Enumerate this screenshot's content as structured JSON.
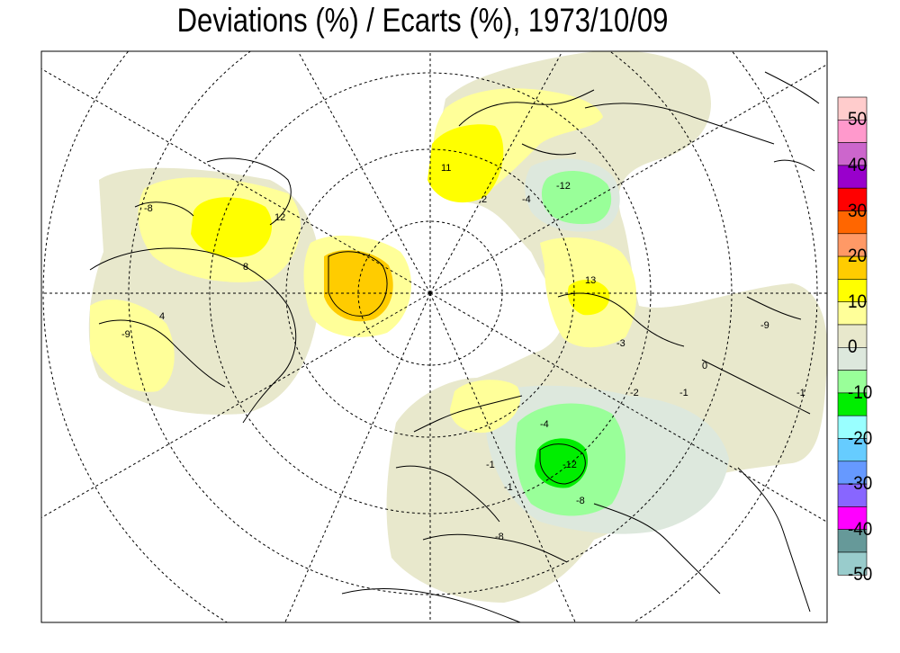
{
  "title": "Deviations (%) / Ecarts (%), 1973/10/09",
  "legend": {
    "labels": [
      "50",
      "40",
      "30",
      "20",
      "10",
      "0",
      "-10",
      "-20",
      "-30",
      "-40",
      "-50"
    ],
    "colors": [
      "#ffcccc",
      "#ff99cc",
      "#cc66cc",
      "#9900cc",
      "#ff0000",
      "#ff6600",
      "#ff9966",
      "#ffcc00",
      "#ffff00",
      "#ffff99",
      "#e8e8cc",
      "#dde8dd",
      "#99ff99",
      "#00ee00",
      "#99ffff",
      "#66ccff",
      "#6699ff",
      "#8866ff",
      "#ff00ff",
      "#669999",
      "#99cccc"
    ]
  },
  "contour_labels": [
    "-8",
    "-12",
    "-4",
    "4",
    "8",
    "-9",
    "-2",
    "13",
    "-4",
    "-12",
    "-1",
    "-1",
    "-8",
    "-1",
    "12",
    "-1",
    "0",
    "2",
    "-3",
    "11",
    "-9",
    "-8"
  ]
}
